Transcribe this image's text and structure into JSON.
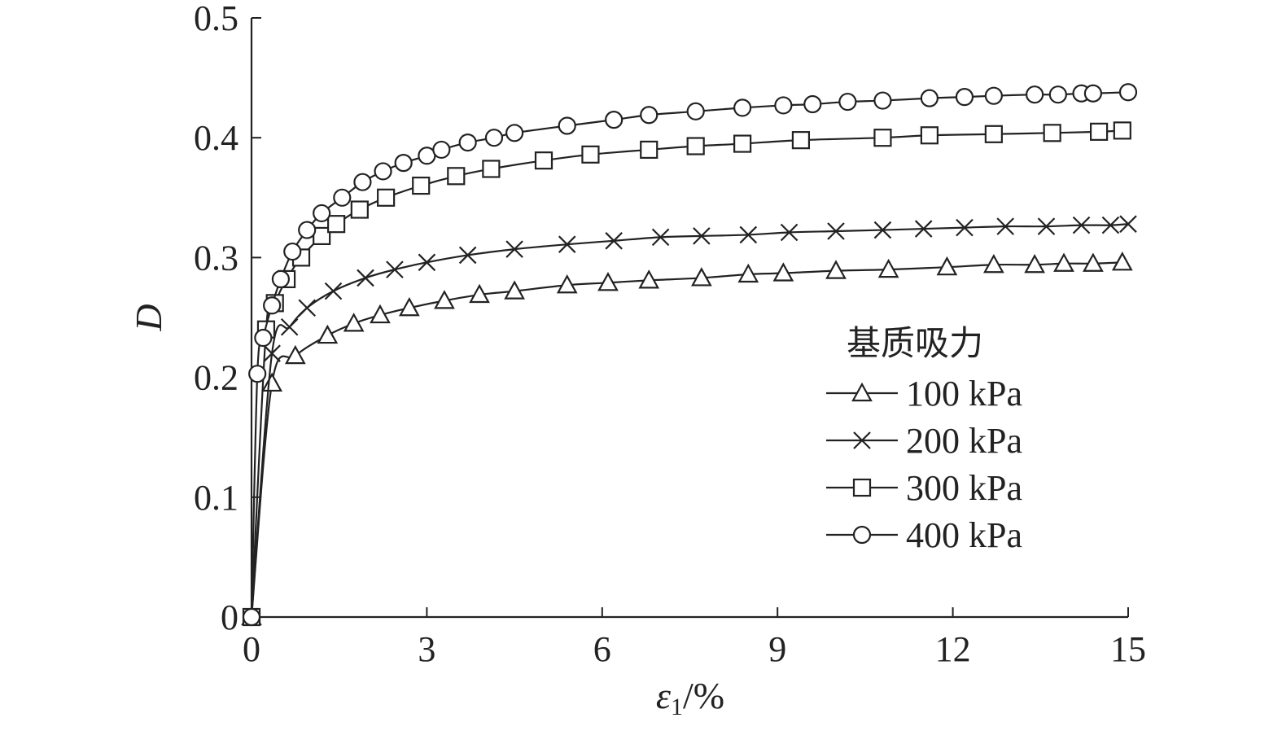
{
  "chart_data": {
    "type": "line",
    "xlabel": "ε",
    "xlabel_sub": "1",
    "xlabel_unit": "/%",
    "ylabel": "D",
    "xlim": [
      0,
      15
    ],
    "ylim": [
      0,
      0.5
    ],
    "xticks": [
      0,
      3,
      6,
      9,
      12,
      15
    ],
    "yticks": [
      0,
      0.1,
      0.2,
      0.3,
      0.4,
      0.5
    ],
    "ytick_labels": [
      "0",
      "0.1",
      "0.2",
      "0.3",
      "0.4",
      "0.5"
    ],
    "grid": false,
    "legend": {
      "title": "基质吸力",
      "placement": "lower-right"
    },
    "series": [
      {
        "name": "100 kPa",
        "marker": "triangle",
        "x": [
          0,
          0.35,
          0.75,
          1.3,
          1.75,
          2.2,
          2.7,
          3.3,
          3.9,
          4.5,
          5.4,
          6.1,
          6.8,
          7.7,
          8.5,
          9.1,
          10.0,
          10.9,
          11.9,
          12.7,
          13.4,
          13.9,
          14.4,
          14.9
        ],
        "y": [
          0,
          0.195,
          0.218,
          0.235,
          0.245,
          0.252,
          0.258,
          0.264,
          0.269,
          0.272,
          0.277,
          0.279,
          0.281,
          0.283,
          0.286,
          0.287,
          0.289,
          0.29,
          0.292,
          0.294,
          0.294,
          0.295,
          0.295,
          0.296
        ]
      },
      {
        "name": "200 kPa",
        "marker": "x",
        "x": [
          0,
          0.35,
          0.65,
          0.95,
          1.4,
          1.95,
          2.45,
          3.0,
          3.7,
          4.5,
          5.4,
          6.2,
          7.0,
          7.7,
          8.5,
          9.2,
          10.0,
          10.8,
          11.5,
          12.2,
          12.9,
          13.6,
          14.2,
          14.7,
          15.0
        ],
        "y": [
          0,
          0.22,
          0.242,
          0.258,
          0.272,
          0.283,
          0.29,
          0.296,
          0.302,
          0.307,
          0.311,
          0.314,
          0.317,
          0.318,
          0.319,
          0.321,
          0.322,
          0.323,
          0.324,
          0.325,
          0.326,
          0.326,
          0.327,
          0.327,
          0.328
        ]
      },
      {
        "name": "300 kPa",
        "marker": "square",
        "x": [
          0,
          0.25,
          0.4,
          0.6,
          0.85,
          1.2,
          1.45,
          1.85,
          2.3,
          2.9,
          3.5,
          4.1,
          5.0,
          5.8,
          6.8,
          7.6,
          8.4,
          9.4,
          10.8,
          11.6,
          12.7,
          13.7,
          14.5,
          14.9
        ],
        "y": [
          0,
          0.24,
          0.262,
          0.282,
          0.3,
          0.318,
          0.328,
          0.34,
          0.35,
          0.36,
          0.368,
          0.374,
          0.381,
          0.386,
          0.39,
          0.393,
          0.395,
          0.398,
          0.4,
          0.402,
          0.403,
          0.404,
          0.405,
          0.406
        ]
      },
      {
        "name": "400 kPa",
        "marker": "circle",
        "x": [
          0,
          0.1,
          0.2,
          0.35,
          0.5,
          0.7,
          0.95,
          1.2,
          1.55,
          1.9,
          2.25,
          2.6,
          3.0,
          3.25,
          3.7,
          4.15,
          4.5,
          5.4,
          6.2,
          6.8,
          7.6,
          8.4,
          9.1,
          9.6,
          10.2,
          10.8,
          11.6,
          12.2,
          12.7,
          13.4,
          13.8,
          14.2,
          14.4,
          15.0
        ],
        "y": [
          0,
          0.203,
          0.233,
          0.26,
          0.282,
          0.305,
          0.323,
          0.337,
          0.35,
          0.363,
          0.372,
          0.379,
          0.385,
          0.39,
          0.396,
          0.4,
          0.404,
          0.41,
          0.415,
          0.419,
          0.422,
          0.425,
          0.427,
          0.428,
          0.43,
          0.431,
          0.433,
          0.434,
          0.435,
          0.436,
          0.436,
          0.437,
          0.437,
          0.438
        ]
      }
    ]
  }
}
